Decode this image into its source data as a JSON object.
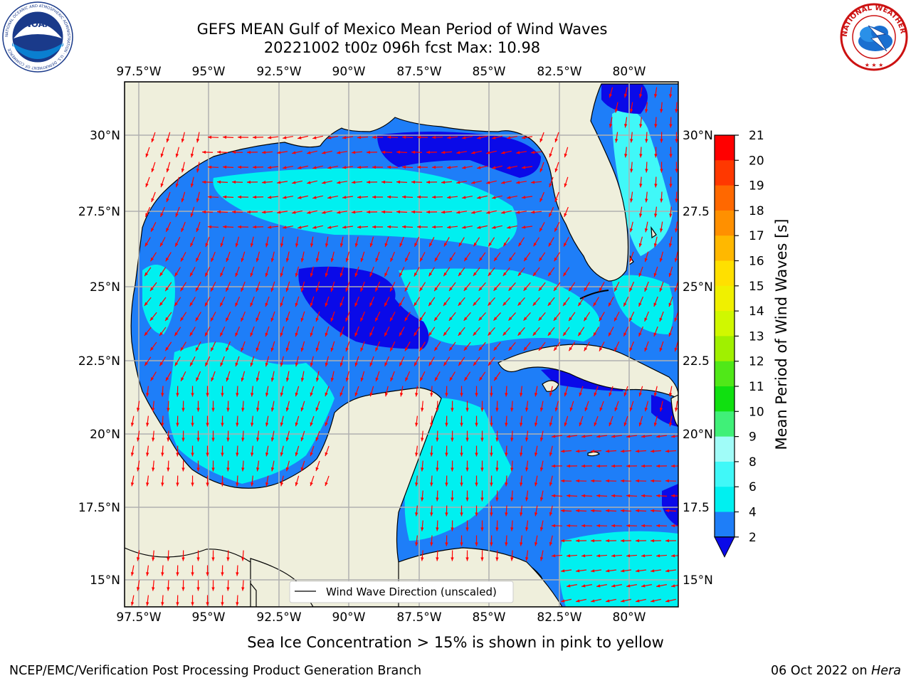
{
  "title_line1": "GEFS MEAN Gulf of Mexico Mean Period of Wind Waves",
  "title_line2": "20221002 t00z 096h fcst   Max: 10.98",
  "lon_labels": [
    "97.5°W",
    "95°W",
    "92.5°W",
    "90°W",
    "87.5°W",
    "85°W",
    "82.5°W",
    "80°W"
  ],
  "lat_labels_left": [
    "30°N",
    "27.5°N",
    "25°N",
    "22.5°N",
    "20°N",
    "17.5°N",
    "15°N"
  ],
  "lat_labels_right": [
    "30°N",
    "27.5",
    "25°N",
    "22.5",
    "20°N",
    "17.5",
    "15°N"
  ],
  "legend_label": "Wind Wave Direction (unscaled)",
  "colorbar": {
    "label": "Mean Period of Wind Waves [s]",
    "ticks": [
      "2",
      "4",
      "6",
      "8",
      "9",
      "10",
      "11",
      "12",
      "13",
      "14",
      "15",
      "16",
      "17",
      "18",
      "19",
      "20",
      "21"
    ],
    "colors": [
      "#0a0ae8",
      "#1e7ef8",
      "#00f0f0",
      "#40f8f8",
      "#a0fcf8",
      "#40f078",
      "#10e010",
      "#50e818",
      "#a0f000",
      "#d0f800",
      "#f0f000",
      "#ffe000",
      "#ffb800",
      "#ff9000",
      "#ff6800",
      "#ff3800",
      "#ff0000"
    ]
  },
  "ice_note": "Sea Ice Concentration > 15% is shown in pink to yellow",
  "footer_left": "NCEP/EMC/Verification Post Processing Product Generation Branch",
  "footer_right_date": "06 Oct 2022 on",
  "footer_right_host": "Hera",
  "logos": {
    "noaa": {
      "icon": "noaa-logo",
      "ring_text": "NATIONAL OCEANIC AND ATMOSPHERIC ADMINISTRATION · U.S. DEPARTMENT OF COMMERCE",
      "center_text": "NOAA"
    },
    "nws": {
      "icon": "nws-logo",
      "ring_text": "NATIONAL WEATHER SERVICE"
    }
  },
  "colors": {
    "land": "#efefdc",
    "arrow": "#ff0000",
    "grid": "#b0b0b0"
  }
}
